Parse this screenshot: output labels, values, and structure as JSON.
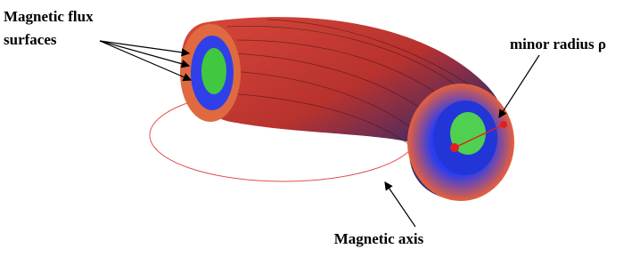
{
  "labels": {
    "flux_surfaces": [
      "Magnetic flux",
      "surfaces"
    ],
    "minor_radius": "minor radius ρ",
    "magnetic_axis": "Magnetic axis"
  }
}
